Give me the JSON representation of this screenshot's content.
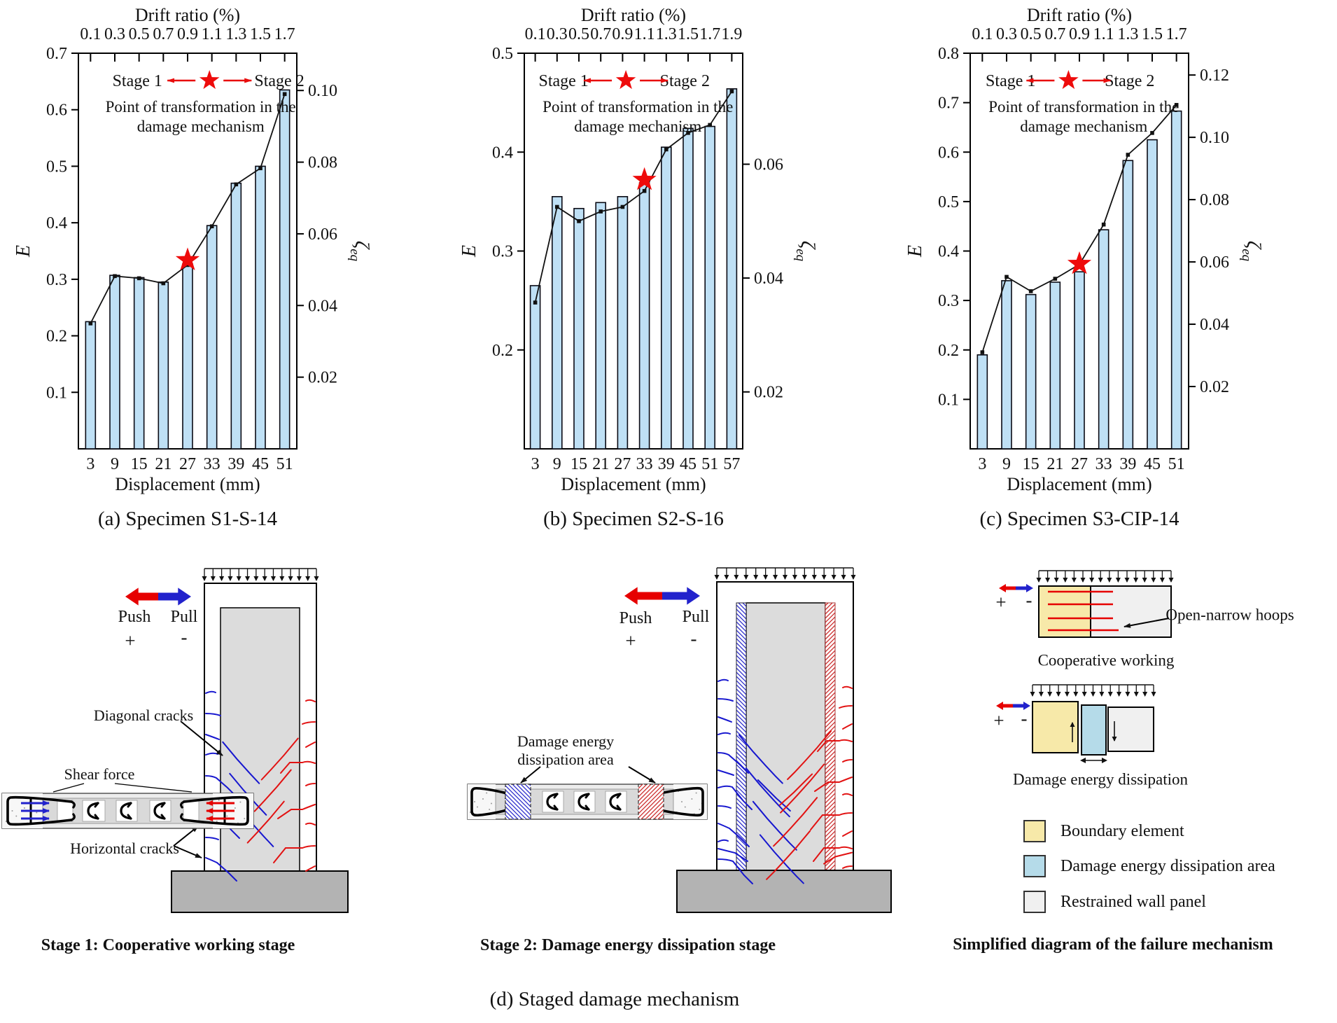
{
  "figure_title": "(d) Staged damage mechanism",
  "colors": {
    "bar_fill": "#bfe0f5",
    "bar_stroke": "#0a0a14",
    "line": "#111111",
    "star_red": "#ee0b0b",
    "annotation_red": "#e80c0c",
    "crack_blue": "#1717cf",
    "crack_red": "#e21212",
    "push_red": "#e60000",
    "pull_blue": "#2222cc",
    "wall_gray": "#dcdcdc",
    "foundation_gray": "#b3b3b3",
    "section_gray": "#ededed",
    "band_gray": "#d9d9d9",
    "speckle_bg": "#f7f7f7",
    "boundary_yellow": "#f7e9a9",
    "dissipation_blue": "#b5dbe9",
    "restrained_gray": "#f0f0f0"
  },
  "chart_annotations": {
    "stage1": "Stage 1",
    "stage2": "Stage 2",
    "transform_line1": "Point of transformation in the",
    "transform_line2": "damage mechanism"
  },
  "chart_data": [
    {
      "id": "a",
      "type": "bar+line",
      "title": "(a) Specimen S1-S-14",
      "categories": [
        "3",
        "9",
        "15",
        "21",
        "27",
        "33",
        "39",
        "45",
        "51"
      ],
      "top_ticks": [
        "0.1",
        "0.3",
        "0.5",
        "0.7",
        "0.9",
        "1.1",
        "1.3",
        "1.5",
        "1.7"
      ],
      "xlabel": "Displacement (mm)",
      "x2label": "Drift ratio (%)",
      "ylabel": "E",
      "y2label_main": "ζ",
      "y2label_sub": "eq",
      "ylim": [
        0,
        0.7
      ],
      "y2lim": [
        0,
        0.1104
      ],
      "left_ticks": [
        "0.1",
        "0.2",
        "0.3",
        "0.4",
        "0.5",
        "0.6",
        "0.7"
      ],
      "right_ticks": [
        "0.02",
        "0.04",
        "0.06",
        "0.08",
        "0.10"
      ],
      "series": [
        {
          "name": "E",
          "axis": "left",
          "values": [
            0.225,
            0.307,
            0.303,
            0.295,
            0.327,
            0.395,
            0.47,
            0.5,
            0.635
          ]
        },
        {
          "name": "ζeq",
          "axis": "right",
          "values": [
            0.035,
            0.0482,
            0.0476,
            0.0462,
            0.0513,
            0.0621,
            0.0738,
            0.0783,
            0.099
          ]
        }
      ],
      "star": {
        "category": "27",
        "index": 4,
        "E": 0.334
      },
      "ann_pos": {
        "s1": 0.27,
        "star": 0.6,
        "s2": 0.92,
        "txt": 0.56
      }
    },
    {
      "id": "b",
      "type": "bar+line",
      "title": "(b) Specimen S2-S-16",
      "categories": [
        "3",
        "9",
        "15",
        "21",
        "27",
        "33",
        "39",
        "45",
        "51",
        "57"
      ],
      "top_ticks": [
        "0.1",
        "0.3",
        "0.5",
        "0.7",
        "0.9",
        "1.1",
        "1.3",
        "1.5",
        "1.7",
        "1.9"
      ],
      "xlabel": "Displacement (mm)",
      "x2label": "Drift ratio (%)",
      "ylabel": "E",
      "y2label_main": "ζ",
      "y2label_sub": "eq",
      "ylim": [
        0.1,
        0.5
      ],
      "y2lim": [
        0.01,
        0.0795
      ],
      "left_ticks": [
        "0.2",
        "0.3",
        "0.4",
        "0.5"
      ],
      "right_ticks": [
        "0.02",
        "0.04",
        "0.06"
      ],
      "series": [
        {
          "name": "E",
          "axis": "left",
          "values": [
            0.265,
            0.355,
            0.343,
            0.349,
            0.355,
            0.369,
            0.405,
            0.424,
            0.426,
            0.464
          ]
        },
        {
          "name": "ζeq",
          "axis": "right",
          "values": [
            0.0357,
            0.0525,
            0.05,
            0.0517,
            0.0525,
            0.0553,
            0.0626,
            0.0655,
            0.0669,
            0.0728
          ]
        }
      ],
      "star": {
        "category": "33",
        "index": 5,
        "E": 0.372
      },
      "ann_pos": {
        "s1": 0.18,
        "star": 0.465,
        "s2": 0.735,
        "txt": 0.52
      }
    },
    {
      "id": "c",
      "type": "bar+line",
      "title": "(c) Specimen S3-CIP-14",
      "categories": [
        "3",
        "9",
        "15",
        "21",
        "27",
        "33",
        "39",
        "45",
        "51"
      ],
      "top_ticks": [
        "0.1",
        "0.3",
        "0.5",
        "0.7",
        "0.9",
        "1.1",
        "1.3",
        "1.5",
        "1.7"
      ],
      "xlabel": "Displacement (mm)",
      "x2label": "Drift ratio (%)",
      "ylabel": "E",
      "y2label_main": "ζ",
      "y2label_sub": "eq",
      "ylim": [
        0,
        0.8
      ],
      "y2lim": [
        0,
        0.127
      ],
      "left_ticks": [
        "0.1",
        "0.2",
        "0.3",
        "0.4",
        "0.5",
        "0.6",
        "0.7",
        "0.8"
      ],
      "right_ticks": [
        "0.02",
        "0.04",
        "0.06",
        "0.08",
        "0.10",
        "0.12"
      ],
      "series": [
        {
          "name": "E",
          "axis": "left",
          "values": [
            0.19,
            0.34,
            0.312,
            0.337,
            0.358,
            0.443,
            0.583,
            0.625,
            0.683
          ]
        },
        {
          "name": "ζeq",
          "axis": "right",
          "values": [
            0.031,
            0.0552,
            0.0506,
            0.0546,
            0.0592,
            0.072,
            0.0944,
            0.1014,
            0.1104
          ]
        }
      ],
      "star": {
        "category": "27",
        "index": 4,
        "E": 0.374
      },
      "ann_pos": {
        "s1": 0.185,
        "star": 0.45,
        "s2": 0.73,
        "txt": 0.52
      }
    }
  ],
  "d_section": {
    "caption": "(d) Staged damage mechanism",
    "push": "Push",
    "push_sign": "+",
    "pull": "Pull",
    "pull_sign": "-",
    "stage1": {
      "diagonal_cracks": "Diagonal cracks",
      "shear_force": "Shear force",
      "horizontal_cracks": "Horizontal cracks",
      "caption": "Stage 1: Cooperative working stage"
    },
    "stage2": {
      "area_line1": "Damage energy",
      "area_line2": "dissipation area",
      "caption": "Stage 2: Damage energy dissipation stage"
    },
    "simplified": {
      "open_narrow": "Open-narrow hoops",
      "cooperative": "Cooperative working",
      "dissipation": "Damage energy dissipation",
      "caption": "Simplified diagram of the failure mechanism",
      "legend": [
        {
          "label": "Boundary element",
          "color": "#f7e9a9"
        },
        {
          "label": "Damage energy dissipation area",
          "color": "#b5dbe9"
        },
        {
          "label": "Restrained wall panel",
          "color": "#f0f0f0"
        }
      ]
    }
  }
}
